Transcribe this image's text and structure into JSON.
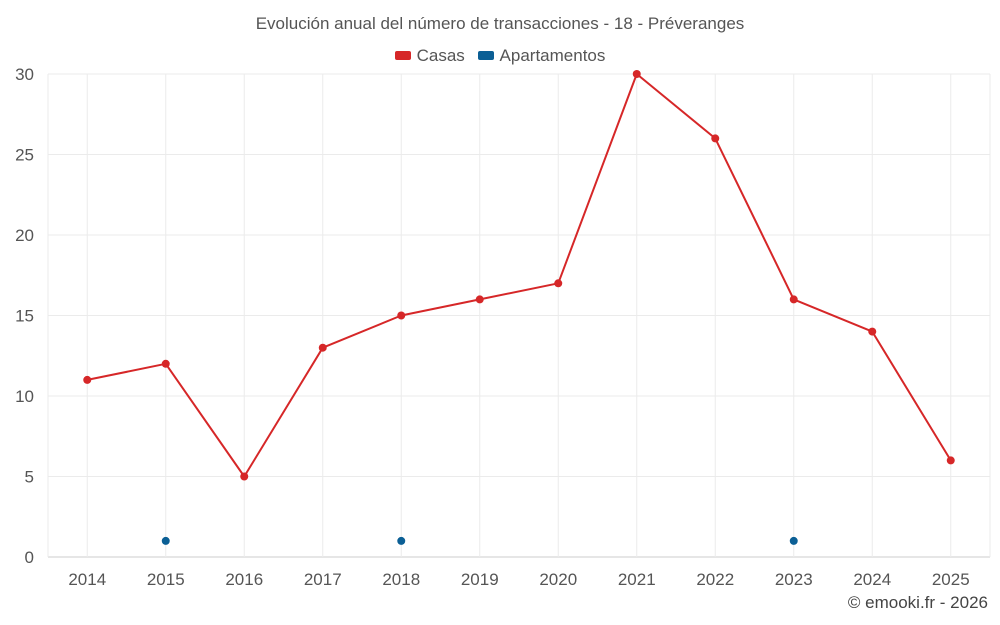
{
  "chart_data": {
    "type": "line",
    "title": "Evolución anual del número de transacciones - 18 - Préveranges",
    "xlabel": "",
    "ylabel": "",
    "categories": [
      "2014",
      "2015",
      "2016",
      "2017",
      "2018",
      "2019",
      "2020",
      "2021",
      "2022",
      "2023",
      "2024",
      "2025"
    ],
    "ylim": [
      0,
      30
    ],
    "yticks": [
      0,
      5,
      10,
      15,
      20,
      25,
      30
    ],
    "grid": true,
    "legend_position": "top-center",
    "series": [
      {
        "name": "Casas",
        "color": "#d62728",
        "values": [
          11,
          12,
          5,
          13,
          15,
          16,
          17,
          30,
          26,
          16,
          14,
          6
        ]
      },
      {
        "name": "Apartamentos",
        "color": "#0b5f95",
        "values": [
          null,
          1,
          null,
          null,
          1,
          null,
          null,
          null,
          null,
          1,
          null,
          null
        ]
      }
    ]
  },
  "credit": "© emooki.fr - 2026"
}
